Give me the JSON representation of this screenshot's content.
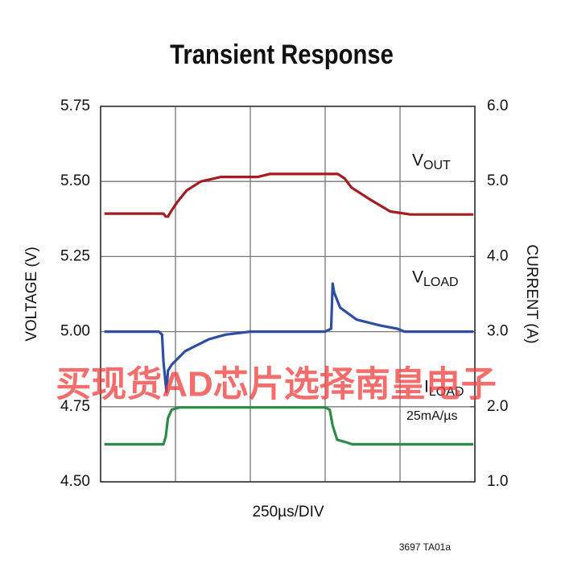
{
  "chart_data": {
    "type": "line",
    "title": "Transient Response",
    "xlabel": "250µs/DIV",
    "ylabel": "VOLTAGE (V)",
    "y2label": "CURRENT (A)",
    "annotations": [
      "25mA/µs",
      "买现货AD芯片选择南皇电子",
      "3697 TA01a"
    ],
    "xlim": [
      0,
      5
    ],
    "xticks": [
      0,
      1,
      2,
      3,
      4,
      5
    ],
    "ylim": [
      4.5,
      5.75
    ],
    "yticks": [
      {
        "value": 4.5,
        "label": "4.50"
      },
      {
        "value": 4.75,
        "label": "4.75"
      },
      {
        "value": 5.0,
        "label": "5.00"
      },
      {
        "value": 5.25,
        "label": "5.25"
      },
      {
        "value": 5.5,
        "label": "5.50"
      },
      {
        "value": 5.75,
        "label": "5.75"
      }
    ],
    "y2lim": [
      1.0,
      6.0
    ],
    "y2ticks": [
      {
        "value": 1.0,
        "label": "1.0"
      },
      {
        "value": 2.0,
        "label": "2.0"
      },
      {
        "value": 3.0,
        "label": "3.0"
      },
      {
        "value": 4.0,
        "label": "4.0"
      },
      {
        "value": 5.0,
        "label": "5.0"
      },
      {
        "value": 6.0,
        "label": "6.0"
      }
    ],
    "grid": true,
    "series": [
      {
        "name": "VOUT",
        "color": "#a11d21",
        "x": [
          0.05,
          0.84,
          0.87,
          0.9,
          0.94,
          1.02,
          1.15,
          1.34,
          1.61,
          2.1,
          2.26,
          3.06,
          3.17,
          3.26,
          3.35,
          3.6,
          3.87,
          4.14,
          4.98
        ],
        "values": [
          5.393,
          5.393,
          5.383,
          5.383,
          5.4,
          5.43,
          5.47,
          5.5,
          5.515,
          5.515,
          5.525,
          5.525,
          5.525,
          5.51,
          5.48,
          5.44,
          5.4,
          5.39,
          5.39
        ]
      },
      {
        "name": "VLOAD",
        "color": "#2e4fa1",
        "x": [
          0.05,
          0.78,
          0.82,
          0.84,
          0.88,
          0.9,
          0.95,
          1.13,
          1.45,
          1.67,
          2.0,
          3.0,
          3.08,
          3.1,
          3.12,
          3.2,
          3.42,
          3.74,
          3.96,
          4.06,
          4.98
        ],
        "values": [
          5.0,
          5.0,
          4.99,
          4.9,
          4.8,
          4.87,
          4.89,
          4.935,
          4.975,
          4.99,
          5.0,
          5.0,
          5.01,
          5.16,
          5.13,
          5.08,
          5.04,
          5.02,
          5.01,
          5.0,
          5.0
        ]
      },
      {
        "name": "ILOAD",
        "color": "#2e8a47",
        "axis": "y2",
        "x": [
          0.05,
          0.84,
          0.87,
          0.9,
          0.95,
          1.05,
          3.0,
          3.06,
          3.1,
          3.16,
          3.3,
          3.36,
          4.98
        ],
        "values": [
          1.5,
          1.5,
          1.6,
          1.85,
          1.96,
          1.99,
          1.99,
          1.96,
          1.75,
          1.56,
          1.52,
          1.5,
          1.5
        ]
      }
    ]
  }
}
